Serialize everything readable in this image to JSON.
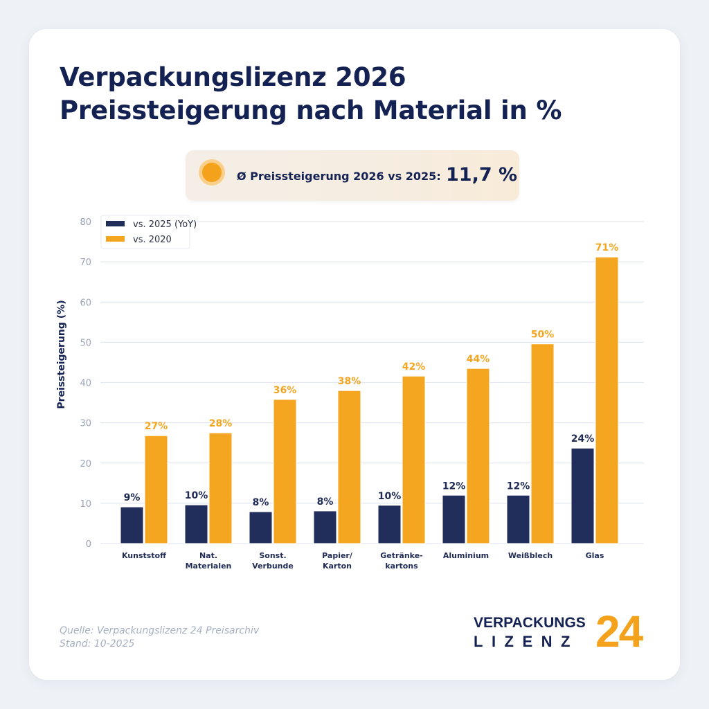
{
  "header": {
    "title_line1": "Verpackungslizenz 2026",
    "title_line2": "Preissteigerung nach Material in %"
  },
  "average": {
    "label": "Ø Preissteigerung 2026 vs 2025:",
    "value": "11,7 %",
    "icon": "orange-dot-icon"
  },
  "colors": {
    "navy": "#212d5a",
    "orange": "#f4a620",
    "title": "#142253",
    "grid": "#e3e7ef",
    "tick": "#9aa3b8"
  },
  "chart_data": {
    "type": "bar",
    "title": "Preissteigerung nach Material in %",
    "xlabel": "",
    "ylabel": "Preissteigerung (%)",
    "ylim": [
      0,
      80
    ],
    "yticks": [
      0,
      10,
      20,
      30,
      40,
      50,
      60,
      70,
      80
    ],
    "grid": true,
    "legend_position": "top-left",
    "categories": [
      [
        "Kunststoff"
      ],
      [
        "Nat.",
        "Materialen"
      ],
      [
        "Sonst.",
        "Verbunde"
      ],
      [
        "Papier/",
        "Karton"
      ],
      [
        "Getränke-",
        "kartons"
      ],
      [
        "Aluminium"
      ],
      [
        "Weißblech"
      ],
      [
        "Glas"
      ]
    ],
    "series": [
      {
        "name": "vs. 2025 (YoY)",
        "color": "#212d5a",
        "values": [
          9.1,
          9.6,
          7.9,
          8.1,
          9.5,
          12.0,
          12.0,
          23.7
        ],
        "labels": [
          "9%",
          "10%",
          "8%",
          "8%",
          "10%",
          "12%",
          "12%",
          "24%"
        ]
      },
      {
        "name": "vs. 2020",
        "color": "#f4a620",
        "values": [
          26.8,
          27.5,
          35.8,
          38.0,
          41.6,
          43.5,
          49.6,
          71.2
        ],
        "labels": [
          "27%",
          "28%",
          "36%",
          "38%",
          "42%",
          "44%",
          "50%",
          "71%"
        ]
      }
    ]
  },
  "footer": {
    "source_line1": "Quelle: Verpackungslizenz 24 Preisarchiv",
    "source_line2": "Stand: 10-2025"
  },
  "logo": {
    "top": "VERPACKUNGS",
    "bottom": "LIZENZ",
    "number": "24"
  }
}
